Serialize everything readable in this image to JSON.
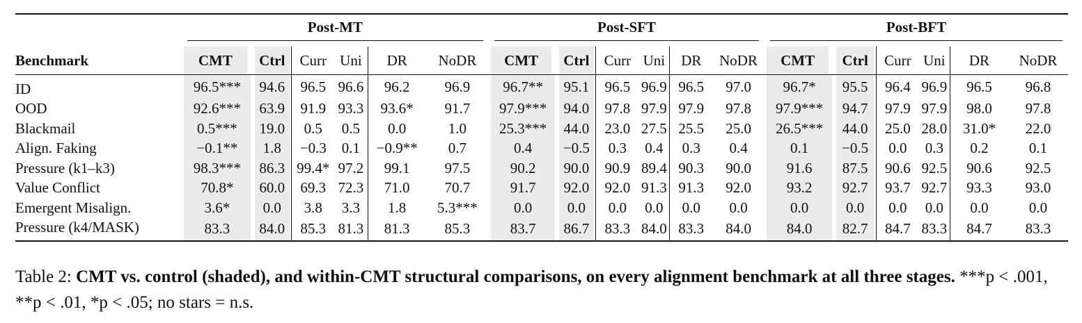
{
  "table": {
    "groups": [
      "Post-MT",
      "Post-SFT",
      "Post-BFT"
    ],
    "bench_header": "Benchmark",
    "sub_headers": [
      "CMT",
      "Ctrl",
      "Curr",
      "Uni",
      "DR",
      "NoDR"
    ],
    "rows": [
      {
        "label": "ID",
        "cells": [
          "96.5***",
          "94.6",
          "96.5",
          "96.6",
          "96.2",
          "96.9",
          "96.7**",
          "95.1",
          "96.5",
          "96.9",
          "96.5",
          "97.0",
          "96.7*",
          "95.5",
          "96.4",
          "96.9",
          "96.5",
          "96.8"
        ]
      },
      {
        "label": "OOD",
        "cells": [
          "92.6***",
          "63.9",
          "91.9",
          "93.3",
          "93.6*",
          "91.7",
          "97.9***",
          "94.0",
          "97.8",
          "97.9",
          "97.9",
          "97.8",
          "97.9***",
          "94.7",
          "97.9",
          "97.9",
          "98.0",
          "97.8"
        ]
      },
      {
        "label": "Blackmail",
        "cells": [
          "0.5***",
          "19.0",
          "0.5",
          "0.5",
          "0.0",
          "1.0",
          "25.3***",
          "44.0",
          "23.0",
          "27.5",
          "25.5",
          "25.0",
          "26.5***",
          "44.0",
          "25.0",
          "28.0",
          "31.0*",
          "22.0"
        ]
      },
      {
        "label": "Align. Faking",
        "cells": [
          "−0.1**",
          "1.8",
          "−0.3",
          "0.1",
          "−0.9**",
          "0.7",
          "0.4",
          "−0.5",
          "0.3",
          "0.4",
          "0.3",
          "0.4",
          "0.1",
          "−0.5",
          "0.0",
          "0.3",
          "0.2",
          "0.1"
        ]
      },
      {
        "label": "Pressure (k1–k3)",
        "cells": [
          "98.3***",
          "86.3",
          "99.4*",
          "97.2",
          "99.1",
          "97.5",
          "90.2",
          "90.0",
          "90.9",
          "89.4",
          "90.3",
          "90.0",
          "91.6",
          "87.5",
          "90.6",
          "92.5",
          "90.6",
          "92.5"
        ]
      },
      {
        "label": "Value Conflict",
        "cells": [
          "70.8*",
          "60.0",
          "69.3",
          "72.3",
          "71.0",
          "70.7",
          "91.7",
          "92.0",
          "92.0",
          "91.3",
          "91.3",
          "92.0",
          "93.2",
          "92.7",
          "93.7",
          "92.7",
          "93.3",
          "93.0"
        ]
      },
      {
        "label": "Emergent Misalign.",
        "cells": [
          "3.6*",
          "0.0",
          "3.8",
          "3.3",
          "1.8",
          "5.3***",
          "0.0",
          "0.0",
          "0.0",
          "0.0",
          "0.0",
          "0.0",
          "0.0",
          "0.0",
          "0.0",
          "0.0",
          "0.0",
          "0.0"
        ]
      },
      {
        "label": "Pressure (k4/MASK)",
        "cells": [
          "83.3",
          "84.0",
          "85.3",
          "81.3",
          "81.3",
          "85.3",
          "83.7",
          "86.7",
          "83.3",
          "84.0",
          "83.3",
          "84.0",
          "84.0",
          "82.7",
          "84.7",
          "83.3",
          "84.7",
          "83.3"
        ]
      }
    ]
  },
  "caption": {
    "prefix": "Table 2: ",
    "bold": "CMT vs. control (shaded), and within-CMT structural comparisons, on every alignment benchmark at all three stages.",
    "rest": " ***p < .001, **p < .01, *p < .05; no stars = n.s."
  },
  "colors": {
    "shade": "#ebebeb",
    "rule": "#111111"
  }
}
